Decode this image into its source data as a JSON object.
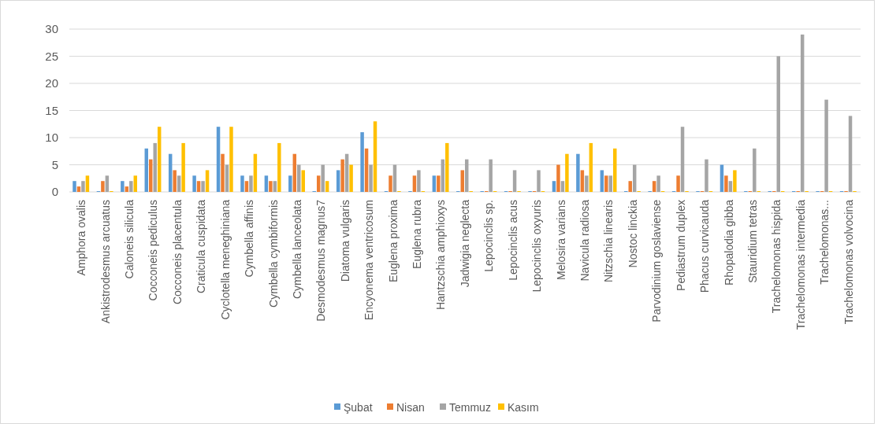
{
  "chart_data": {
    "type": "bar",
    "categories": [
      "Amphora ovalis",
      "Ankistrodesmus arcuatus",
      "Caloneis silicula",
      "Cocconeis pediculus",
      "Cocconeis placentula",
      "Craticula cuspidata",
      "Cyclotella meneghiniana",
      "Cymbella affinis",
      "Cymbella cymbiformis",
      "Cymbella lanceolata",
      "Desmodesmus magnus7",
      "Diatoma vulgaris",
      "Encyonema ventricosum",
      "Euglena proxima",
      "Euglena rubra",
      "Hantzschia amphioxys",
      "Jadwigia neglecta",
      "Lepocinclis sp.",
      "Lepocinclis acus",
      "Lepocinclis oxyuris",
      "Melosira varians",
      "Navicula radiosa",
      "Nitzschia linearis",
      "Nostoc linckia",
      "Parvodinium goslaviense",
      "Pediastrum duplex",
      "Phacus curvicauda",
      "Rhopalodia gibba",
      "Stauridium tetras",
      "Trachelomonas hispida",
      "Trachelomonas intermedia",
      "Trachelomonas...",
      "Trachelomonas volvocina"
    ],
    "series": [
      {
        "name": "Şubat",
        "color": "#5b9bd5",
        "values": [
          2,
          0,
          2,
          8,
          7,
          3,
          12,
          3,
          3,
          3,
          0,
          4,
          11,
          0,
          0,
          3,
          0,
          0,
          0,
          0,
          2,
          7,
          4,
          0,
          0,
          0,
          0,
          5,
          0,
          0,
          0,
          0,
          0
        ]
      },
      {
        "name": "Nisan",
        "color": "#ed7d31",
        "values": [
          1,
          2,
          1,
          6,
          4,
          2,
          7,
          2,
          2,
          7,
          3,
          6,
          8,
          3,
          3,
          3,
          4,
          0,
          0,
          0,
          5,
          4,
          3,
          2,
          2,
          3,
          0,
          3,
          0,
          0,
          0,
          0,
          0
        ]
      },
      {
        "name": "Temmuz",
        "color": "#a5a5a5",
        "values": [
          2,
          3,
          2,
          9,
          3,
          2,
          5,
          3,
          2,
          5,
          5,
          7,
          5,
          5,
          4,
          6,
          6,
          6,
          4,
          4,
          2,
          3,
          3,
          5,
          3,
          12,
          6,
          2,
          8,
          25,
          29,
          17,
          14
        ]
      },
      {
        "name": "Kasım",
        "color": "#ffc000",
        "values": [
          3,
          0,
          3,
          12,
          9,
          4,
          12,
          7,
          9,
          4,
          2,
          5,
          13,
          0,
          0,
          9,
          0,
          0,
          0,
          0,
          7,
          9,
          8,
          0,
          0,
          0,
          0,
          4,
          0,
          0,
          0,
          0,
          0
        ]
      }
    ],
    "ylim": [
      0,
      30
    ],
    "yticks": [
      0,
      5,
      10,
      15,
      20,
      25,
      30
    ],
    "grid": "y",
    "legend": "bottom"
  }
}
